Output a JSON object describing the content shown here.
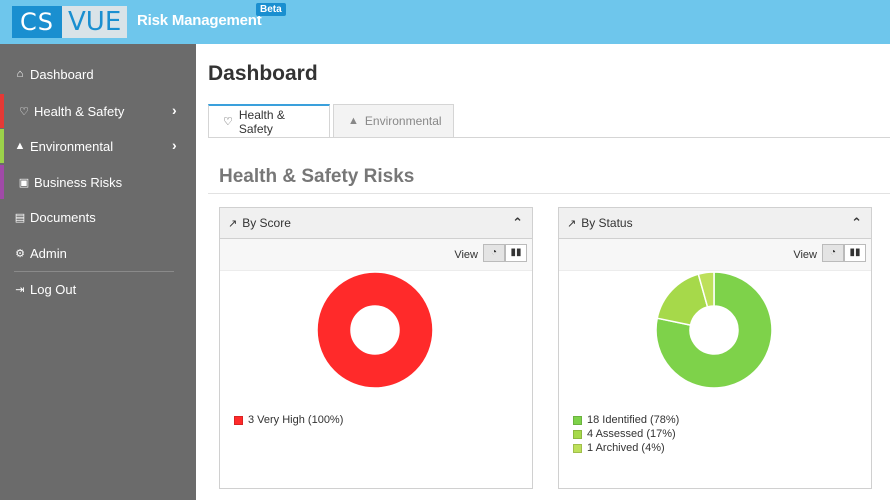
{
  "app": {
    "logo_cs": "CS",
    "logo_vue": "VUE",
    "title": "Risk Management",
    "badge": "Beta"
  },
  "sidebar": {
    "items": [
      {
        "label": "Dashboard",
        "icon": "home-icon"
      },
      {
        "label": "Health & Safety",
        "icon": "heartbeat-icon",
        "accent": "#e53935",
        "has_submenu": true
      },
      {
        "label": "Environmental",
        "icon": "tree-icon",
        "accent": "#9bd24a",
        "has_submenu": true
      },
      {
        "label": "Business Risks",
        "icon": "briefcase-icon",
        "accent": "#a04aa8"
      },
      {
        "label": "Documents",
        "icon": "document-icon"
      },
      {
        "label": "Admin",
        "icon": "cogs-icon"
      },
      {
        "label": "Log Out",
        "icon": "sign-out-icon"
      }
    ]
  },
  "page": {
    "title": "Dashboard",
    "tabs": [
      {
        "label": "Health & Safety",
        "icon": "heartbeat-icon",
        "active": true
      },
      {
        "label": "Environmental",
        "icon": "tree-icon",
        "active": false
      }
    ],
    "section_title": "Health & Safety Risks"
  },
  "panels": [
    {
      "title": "By Score",
      "view_label": "View",
      "legend": [
        {
          "label": "3 Very High (100%)",
          "color": "#ff2a2a"
        }
      ]
    },
    {
      "title": "By Status",
      "view_label": "View",
      "legend": [
        {
          "label": "18 Identified (78%)",
          "color": "#7ed24a"
        },
        {
          "label": "4 Assessed (17%)",
          "color": "#a6d94a"
        },
        {
          "label": "1 Archived (4%)",
          "color": "#bde05a"
        }
      ]
    }
  ],
  "chart_data": [
    {
      "type": "pie",
      "title": "By Score",
      "categories": [
        "Very High"
      ],
      "values": [
        3
      ],
      "colors": [
        "#ff2a2a"
      ]
    },
    {
      "type": "pie",
      "title": "By Status",
      "categories": [
        "Identified",
        "Assessed",
        "Archived"
      ],
      "values": [
        18,
        4,
        1
      ],
      "colors": [
        "#7ed24a",
        "#a6d94a",
        "#bde05a"
      ]
    }
  ]
}
